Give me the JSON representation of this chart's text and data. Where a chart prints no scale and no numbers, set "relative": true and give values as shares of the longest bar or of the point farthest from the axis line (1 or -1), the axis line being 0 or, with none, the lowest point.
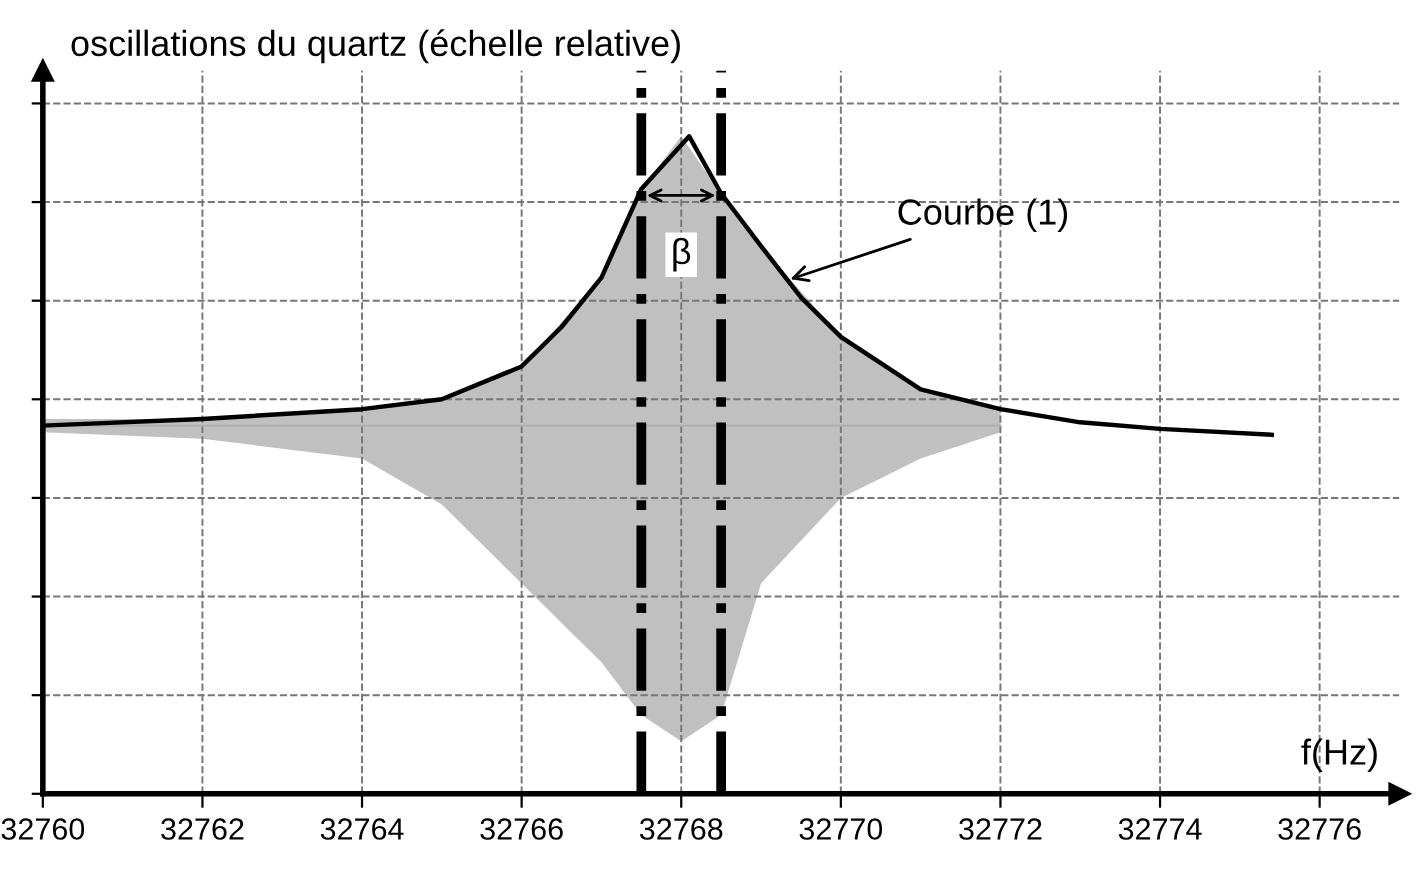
{
  "chart_data": {
    "type": "line",
    "relative": true,
    "ylabel": "oscillations du quartz (échelle relative)",
    "xlabel": "f(Hz)",
    "xlim": [
      32760,
      32777
    ],
    "xticks": [
      32760,
      32762,
      32764,
      32766,
      32768,
      32770,
      32772,
      32774,
      32776
    ],
    "grid": true,
    "marker": "none",
    "line_style": "solid",
    "series": [
      {
        "color": "#b0b0b0",
        "x": [
          32760,
          32762,
          32764,
          32765,
          32766,
          32767,
          32767.5,
          32768,
          32768.5,
          32769,
          32770,
          32771,
          32772
        ],
        "values": [
          0.56,
          0.56,
          0.56,
          0.56,
          0.56,
          0.56,
          0.56,
          0.56,
          0.56,
          0.56,
          0.56,
          0.56,
          0.56
        ],
        "lower": [
          0.55,
          0.54,
          0.51,
          0.44,
          0.32,
          0.2,
          0.12,
          0.08,
          0.12,
          0.32,
          0.45,
          0.51,
          0.55
        ],
        "upper": [
          0.57,
          0.57,
          0.585,
          0.6,
          0.65,
          0.785,
          0.92,
          1.0,
          0.913,
          0.833,
          0.695,
          0.615,
          0.585
        ]
      },
      {
        "color": "#000000",
        "x": [
          32760,
          32762,
          32764,
          32765,
          32766,
          32766.5,
          32767,
          32767.5,
          32768.1,
          32768.5,
          32769,
          32769.5,
          32770,
          32771,
          32772,
          32773,
          32774,
          32775.4
        ],
        "values": [
          0.56,
          0.57,
          0.585,
          0.6,
          0.65,
          0.71,
          0.785,
          0.92,
          1.0,
          0.913,
          0.833,
          0.755,
          0.695,
          0.615,
          0.585,
          0.565,
          0.555,
          0.546
        ]
      }
    ],
    "ref_lines": [
      {
        "axis": "x",
        "value": 32767.5,
        "color": "#000000",
        "line_style": "dashdot"
      },
      {
        "axis": "x",
        "value": 32768.5,
        "color": "#000000",
        "line_style": "dashdot"
      }
    ],
    "annotations": [
      {
        "text": "β",
        "x": 32768,
        "y": 0.82
      },
      {
        "text": "Courbe (1)",
        "x": 32769.3,
        "y": 0.78
      }
    ]
  }
}
